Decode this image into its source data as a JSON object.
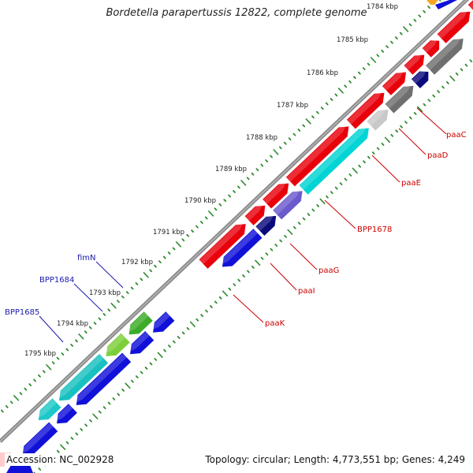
{
  "title": "Bordetella parapertussis 12822, complete genome",
  "footer": {
    "accession": "Accession: NC_002928",
    "summary": "Topology: circular; Length: 4,773,551 bp; Genes: 4,249"
  },
  "colors": {
    "backbone": "#8a8a8a",
    "ticks": "#2e8b2e",
    "forward_genes": "#e8000b",
    "reverse_genes": "#1010d8",
    "cyan_gene": "#00d4d4",
    "green_gene": "#3cab28",
    "gray_gene": "#6f6f6f",
    "label_forward": "#cc0000",
    "label_reverse": "#1a1aaa"
  },
  "kbp_labels": [
    "1784 kbp",
    "1785 kbp",
    "1786 kbp",
    "1787 kbp",
    "1788 kbp",
    "1789 kbp",
    "1790 kbp",
    "1791 kbp",
    "1792 kbp",
    "1793 kbp",
    "1794 kbp",
    "1795 kbp"
  ],
  "gene_labels": [
    {
      "text": "paaC",
      "strand": "forward"
    },
    {
      "text": "paaD",
      "strand": "forward"
    },
    {
      "text": "paaE",
      "strand": "forward"
    },
    {
      "text": "BPP1678",
      "strand": "forward"
    },
    {
      "text": "paaG",
      "strand": "forward"
    },
    {
      "text": "paaI",
      "strand": "forward"
    },
    {
      "text": "paaK",
      "strand": "forward"
    },
    {
      "text": "fimN",
      "strand": "reverse"
    },
    {
      "text": "BPP1684",
      "strand": "reverse"
    },
    {
      "text": "BPP1685",
      "strand": "reverse"
    }
  ]
}
